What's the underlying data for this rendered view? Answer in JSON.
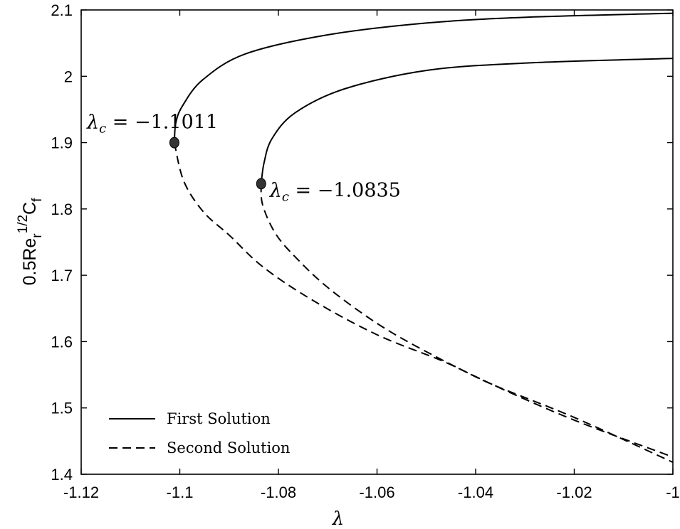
{
  "chart_data": {
    "type": "line",
    "title": "",
    "xlabel": "λ",
    "ylabel": {
      "base": "0.5Re",
      "sub": "r",
      "sup": "1/2",
      "tail": "C",
      "tail_sub": "f"
    },
    "xlim": [
      -1.12,
      -1.0
    ],
    "ylim": [
      1.4,
      2.1
    ],
    "xticks": [
      -1.12,
      -1.1,
      -1.08,
      -1.06,
      -1.04,
      -1.02,
      -1.0
    ],
    "xtick_labels": [
      "-1.12",
      "-1.1",
      "-1.08",
      "-1.06",
      "-1.04",
      "-1.02",
      "-1"
    ],
    "yticks": [
      1.4,
      1.5,
      1.6,
      1.7,
      1.8,
      1.9,
      2.0,
      2.1
    ],
    "ytick_labels": [
      "1.4",
      "1.5",
      "1.6",
      "1.7",
      "1.8",
      "1.9",
      "2",
      "2.1"
    ],
    "grid": false,
    "legend": {
      "placement": "bottom-left",
      "entries": [
        "First Solution",
        "Second Solution"
      ]
    },
    "series": [
      {
        "name": "First Solution",
        "branch": 1,
        "style": "solid",
        "x": [
          -1.1011,
          -1.1008,
          -1.0994,
          -1.0953,
          -1.0866,
          -1.0699,
          -1.0498,
          -1.0297,
          -1.0
        ],
        "y": [
          1.9,
          1.93,
          1.956,
          1.995,
          2.034,
          2.0626,
          2.0804,
          2.089,
          2.095
        ]
      },
      {
        "name": "Second Solution",
        "branch": 1,
        "style": "dashed",
        "x": [
          -1.1011,
          -1.0992,
          -1.0952,
          -1.0899,
          -1.0832,
          -1.0732,
          -1.0599,
          -1.0465,
          -1.0365,
          -1.0198,
          -1.0
        ],
        "y": [
          1.9,
          1.842,
          1.7955,
          1.76,
          1.713,
          1.663,
          1.61,
          1.57,
          1.535,
          1.485,
          1.418
        ]
      },
      {
        "name": "First Solution",
        "branch": 2,
        "style": "solid",
        "x": [
          -1.0835,
          -1.0829,
          -1.0813,
          -1.0766,
          -1.0666,
          -1.0498,
          -1.0297,
          -1.0
        ],
        "y": [
          1.838,
          1.87,
          1.906,
          1.945,
          1.981,
          2.009,
          2.02,
          2.027
        ]
      },
      {
        "name": "Second Solution",
        "branch": 2,
        "style": "dashed",
        "x": [
          -1.0835,
          -1.0832,
          -1.0806,
          -1.0765,
          -1.0699,
          -1.0599,
          -1.0498,
          -1.0365,
          -1.0198,
          -1.0
        ],
        "y": [
          1.838,
          1.806,
          1.763,
          1.727,
          1.681,
          1.627,
          1.584,
          1.535,
          1.481,
          1.426
        ]
      }
    ],
    "critical_points": [
      {
        "x": -1.1011,
        "y": 1.9,
        "label_sym": "λ",
        "label_sub": "c",
        "label_val": "= −1.1011",
        "label_side": "above-left"
      },
      {
        "x": -1.0835,
        "y": 1.838,
        "label_sym": "λ",
        "label_sub": "c",
        "label_val": "= −1.0835",
        "label_side": "right"
      }
    ]
  }
}
